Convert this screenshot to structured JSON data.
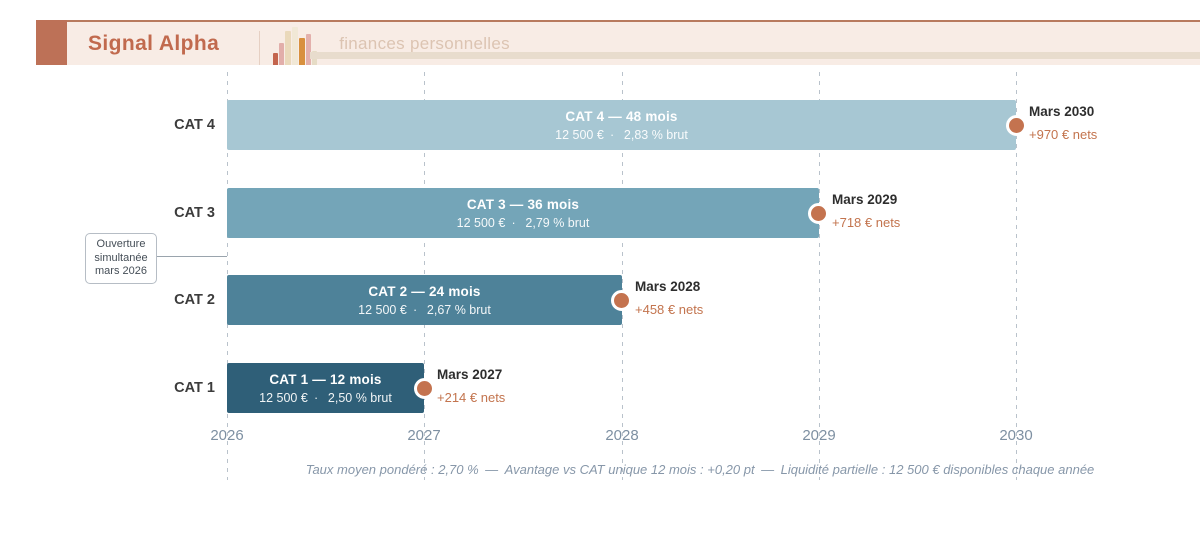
{
  "header": {
    "brand": "Signal Alpha",
    "subtitle": "finances personnelles",
    "icon": "bar-chart-icon"
  },
  "annotation": {
    "lines": [
      "Ouverture",
      "simultanée",
      "mars 2026"
    ]
  },
  "chart_data": {
    "type": "bar",
    "orientation": "horizontal-timeline",
    "title": "",
    "x_ticks": [
      2026,
      2027,
      2028,
      2029,
      2030
    ],
    "x_range": [
      2026,
      2030
    ],
    "grid": "dashed-vertical",
    "rows": [
      {
        "label": "CAT 4",
        "bar_title": "CAT 4 — 48 mois",
        "bar_subtitle": "12 500 € ·  2,83 % brut",
        "amount_eur": 12500,
        "rate_brut_pct": 2.83,
        "duration_months": 48,
        "start_year": 2026,
        "end_year": 2030,
        "maturity": "Mars 2030",
        "net_gain": "+970 € nets",
        "net_gain_eur": 970,
        "color": "#a7c7d3"
      },
      {
        "label": "CAT 3",
        "bar_title": "CAT 3 — 36 mois",
        "bar_subtitle": "12 500 € ·  2,79 % brut",
        "amount_eur": 12500,
        "rate_brut_pct": 2.79,
        "duration_months": 36,
        "start_year": 2026,
        "end_year": 2029,
        "maturity": "Mars 2029",
        "net_gain": "+718 € nets",
        "net_gain_eur": 718,
        "color": "#74a5b8"
      },
      {
        "label": "CAT 2",
        "bar_title": "CAT 2 — 24 mois",
        "bar_subtitle": "12 500 € ·  2,67 % brut",
        "amount_eur": 12500,
        "rate_brut_pct": 2.67,
        "duration_months": 24,
        "start_year": 2026,
        "end_year": 2028,
        "maturity": "Mars 2028",
        "net_gain": "+458 € nets",
        "net_gain_eur": 458,
        "color": "#4e8299"
      },
      {
        "label": "CAT 1",
        "bar_title": "CAT 1 — 12 mois",
        "bar_subtitle": "12 500 € ·  2,50 % brut",
        "amount_eur": 12500,
        "rate_brut_pct": 2.5,
        "duration_months": 12,
        "start_year": 2026,
        "end_year": 2027,
        "maturity": "Mars 2027",
        "net_gain": "+214 € nets",
        "net_gain_eur": 214,
        "color": "#2f5f78"
      }
    ],
    "footer": "Taux moyen pondéré : 2,70 % — Avantage vs CAT unique 12 mois : +0,20 pt — Liquidité partielle : 12 500 € disponibles chaque année",
    "footer_stats": {
      "taux_moyen_pondere": "2,70 %",
      "avantage_vs_cat_unique_12_mois": "+0,20 pt",
      "liquidite_partielle": "12 500 € disponibles chaque année"
    }
  },
  "colors": {
    "marker": "#c4734f",
    "net_gain_text": "#c3744e",
    "maturity_text": "#2e2e2e",
    "grid": "#b9c2cb",
    "header_bg": "#f8ece5",
    "brand": "#c16a4e",
    "accent_square": "#bd7157"
  }
}
